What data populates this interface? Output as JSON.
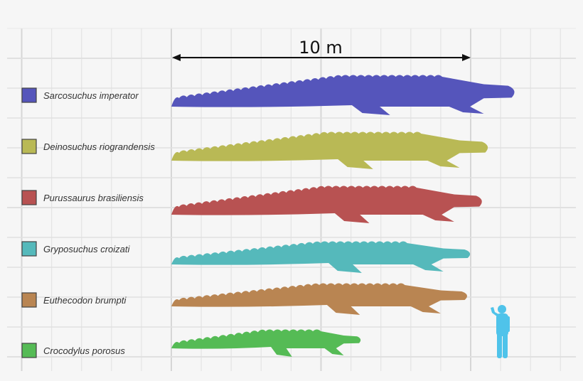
{
  "scale_bar": {
    "label": "10 m",
    "length_m": 10
  },
  "grid": {
    "unit_m": 1,
    "major_every_m": 5
  },
  "species": [
    {
      "name": "Sarcosuchus imperator",
      "color": "#5555bb",
      "length_m": 11.6
    },
    {
      "name": "Deinosuchus riograndensis",
      "color": "#b9b955",
      "length_m": 10.7
    },
    {
      "name": "Purussaurus brasiliensis",
      "color": "#b85252",
      "length_m": 10.5
    },
    {
      "name": "Gryposuchus croizati",
      "color": "#55b9bb",
      "length_m": 10.1
    },
    {
      "name": "Euthecodon brumpti",
      "color": "#b98552",
      "length_m": 10.0
    },
    {
      "name": "Crocodylus porosus",
      "color": "#55bb55",
      "length_m": 6.4
    }
  ],
  "human": {
    "color": "#4fc3ea",
    "height_m": 1.8
  }
}
